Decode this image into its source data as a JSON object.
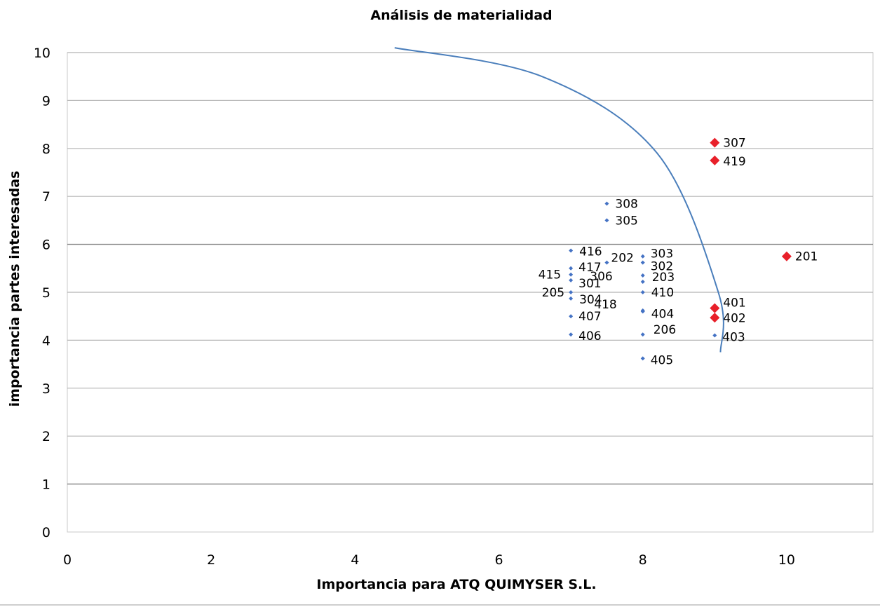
{
  "chart_data": {
    "type": "scatter",
    "title": "Análisis de materialidad",
    "xlabel": "Importancia para ATQ QUIMYSER S.L.",
    "ylabel": "importancia partes interesadas",
    "xlim": [
      0,
      11.2
    ],
    "ylim": [
      0,
      10
    ],
    "x_ticks": [
      "0",
      "2",
      "4",
      "6",
      "8",
      "10"
    ],
    "y_ticks": [
      "0",
      "1",
      "2",
      "3",
      "4",
      "5",
      "6",
      "7",
      "8",
      "9",
      "10"
    ],
    "emphasized_gridlines_y": [
      1,
      6
    ],
    "colors": {
      "regular": "#4472c4",
      "material": "#e8202a",
      "curve": "#4a7ebb"
    },
    "series": [
      {
        "style": "regular",
        "points": [
          {
            "label": "308",
            "x": 7.5,
            "y": 6.85
          },
          {
            "label": "305",
            "x": 7.5,
            "y": 6.5
          },
          {
            "label": "416",
            "x": 7.0,
            "y": 5.87
          },
          {
            "label": "202",
            "x": 7.5,
            "y": 5.62
          },
          {
            "label": "303",
            "x": 8.0,
            "y": 5.75
          },
          {
            "label": "302",
            "x": 8.0,
            "y": 5.62
          },
          {
            "label": "417",
            "x": 7.0,
            "y": 5.5
          },
          {
            "label": "415",
            "x": 7.0,
            "y": 5.37
          },
          {
            "label": "301",
            "x": 7.0,
            "y": 5.25
          },
          {
            "label": "306",
            "x": 8.0,
            "y": 5.35
          },
          {
            "label": "203",
            "x": 8.0,
            "y": 5.22
          },
          {
            "label": "410",
            "x": 8.0,
            "y": 5.0
          },
          {
            "label": "205",
            "x": 7.0,
            "y": 5.0
          },
          {
            "label": "304",
            "x": 7.0,
            "y": 4.87
          },
          {
            "label": "418",
            "x": 8.0,
            "y": 4.62
          },
          {
            "label": "404",
            "x": 8.0,
            "y": 4.6
          },
          {
            "label": "407",
            "x": 7.0,
            "y": 4.5
          },
          {
            "label": "406",
            "x": 7.0,
            "y": 4.12
          },
          {
            "label": "206",
            "x": 8.0,
            "y": 4.12
          },
          {
            "label": "403",
            "x": 9.0,
            "y": 4.1
          },
          {
            "label": "405",
            "x": 8.0,
            "y": 3.62
          }
        ]
      },
      {
        "style": "material",
        "points": [
          {
            "label": "307",
            "x": 9.0,
            "y": 8.12
          },
          {
            "label": "419",
            "x": 9.0,
            "y": 7.75
          },
          {
            "label": "201",
            "x": 10.0,
            "y": 5.75
          },
          {
            "label": "401",
            "x": 9.0,
            "y": 4.67
          },
          {
            "label": "402",
            "x": 9.0,
            "y": 4.47
          }
        ]
      }
    ],
    "curve": [
      [
        4.55,
        10.1
      ],
      [
        6.6,
        9.5
      ],
      [
        8.2,
        7.9
      ],
      [
        9.05,
        5.0
      ],
      [
        9.08,
        3.75
      ]
    ]
  }
}
